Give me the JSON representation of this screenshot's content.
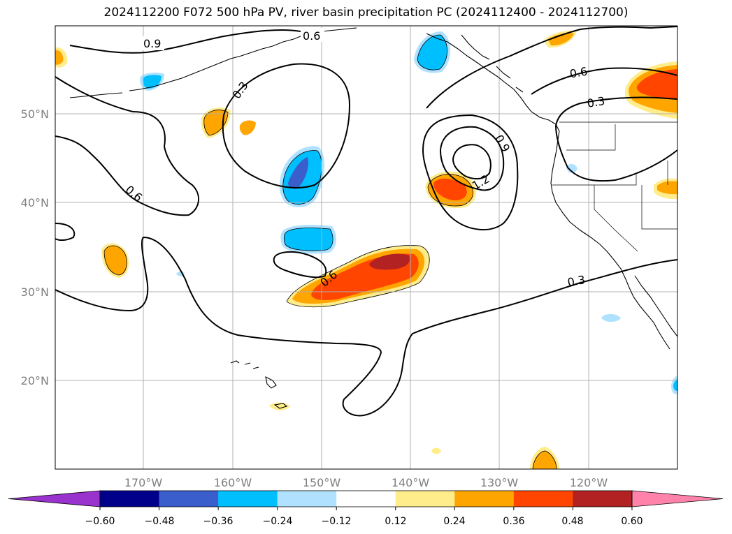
{
  "title": "2024112200 F072 500 hPa PV, river basin precipitation PC (2024112400 - 2024112700)",
  "map": {
    "lon_range": [
      -180,
      -110
    ],
    "lat_range": [
      10,
      60
    ],
    "lat_labels": [
      "20°N",
      "30°N",
      "40°N",
      "50°N"
    ],
    "lon_labels": [
      "170°W",
      "160°W",
      "150°W",
      "140°W",
      "130°W",
      "120°W"
    ],
    "contour_labels": [
      "0.9",
      "0.6",
      "0.3",
      "0.6",
      "0.6",
      "0.3",
      "0.9",
      "1.2",
      "0.6",
      "0.3"
    ]
  },
  "colorbar": {
    "ticks": [
      "−0.60",
      "−0.48",
      "−0.36",
      "−0.24",
      "−0.12",
      "0.12",
      "0.24",
      "0.36",
      "0.48",
      "0.60"
    ],
    "colors": [
      "#9a32cd",
      "#00008b",
      "#3a5fcd",
      "#00bfff",
      "#b0e2ff",
      "#ffffff",
      "#ffec8b",
      "#ffa500",
      "#ff4500",
      "#b22222",
      "#ff82ab"
    ]
  }
}
